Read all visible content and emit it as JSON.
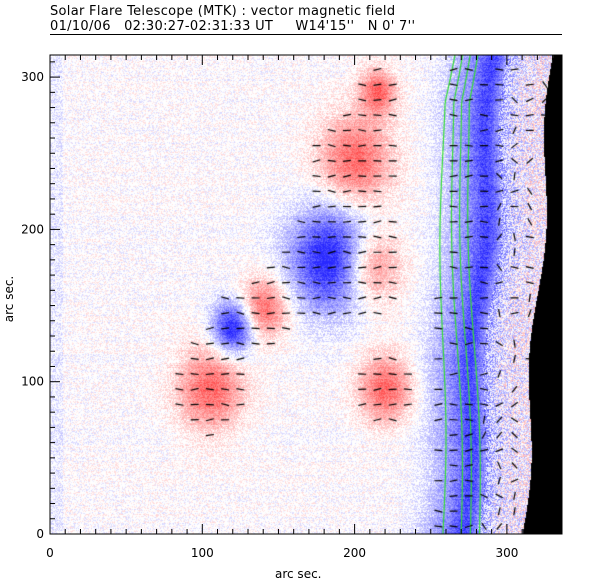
{
  "chart_data": {
    "type": "heatmap",
    "title": "Solar Flare Telescope (MTK) : vector magnetic field",
    "subtitle": {
      "date": "01/10/06",
      "time_range": "02:30:27-02:31:33 UT",
      "longitude": "W14'15''",
      "latitude": "N 0' 7''"
    },
    "xlabel": "arc sec.",
    "ylabel": "arc sec.",
    "xlim": [
      0,
      336
    ],
    "ylim": [
      0,
      315
    ],
    "x_ticks": [
      0,
      100,
      200,
      300
    ],
    "y_ticks": [
      0,
      100,
      200,
      300
    ],
    "x_tick_labels": [
      "0",
      "100",
      "200",
      "300"
    ],
    "y_tick_labels": [
      "0",
      "100",
      "200",
      "300"
    ],
    "minor_tick_step": 10,
    "colormap": {
      "positive": "#f03a3a",
      "negative": "#2a2af0",
      "zero": "#ffffff"
    },
    "contour_color": "#33dd33",
    "vector_color": "#000000",
    "off_disk_color": "#000000",
    "regions": [
      {
        "name": "positive-patch-lower-left",
        "x": 105,
        "y": 95,
        "radius": 22,
        "sign": 1
      },
      {
        "name": "negative-spot-small",
        "x": 120,
        "y": 135,
        "radius": 14,
        "sign": -1
      },
      {
        "name": "positive-patch-mid",
        "x": 140,
        "y": 148,
        "radius": 16,
        "sign": 1
      },
      {
        "name": "negative-spot-large",
        "x": 185,
        "y": 180,
        "radius": 28,
        "sign": -1
      },
      {
        "name": "positive-patch-right",
        "x": 210,
        "y": 175,
        "radius": 20,
        "sign": 1
      },
      {
        "name": "positive-plage-top",
        "x": 200,
        "y": 245,
        "radius": 24,
        "sign": 1
      },
      {
        "name": "positive-plage-lower",
        "x": 220,
        "y": 95,
        "radius": 18,
        "sign": 1
      },
      {
        "name": "positive-plage-far-top",
        "x": 215,
        "y": 290,
        "radius": 12,
        "sign": 1
      }
    ],
    "limb": {
      "x_at_bottom": 310,
      "x_at_top": 330
    },
    "contours": [
      {
        "x_at_bottom": 258,
        "x_at_top": 258
      },
      {
        "x_at_bottom": 270,
        "x_at_top": 263
      },
      {
        "x_at_bottom": 276,
        "x_at_top": 268
      },
      {
        "x_at_bottom": 282,
        "x_at_top": 273
      }
    ]
  }
}
